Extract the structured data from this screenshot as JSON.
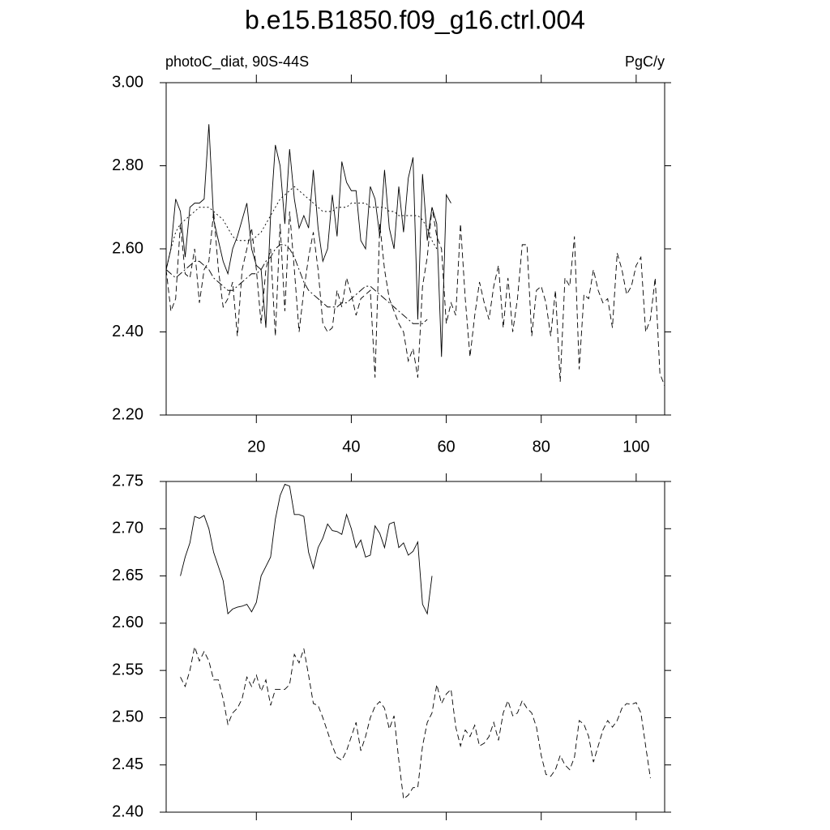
{
  "chart_data": [
    {
      "type": "line",
      "title": "b.e15.B1850.f09_g16.ctrl.004",
      "left_string": "photoC_diat, 90S-44S",
      "right_string": "PgC/y",
      "x": [
        1,
        2,
        3,
        4,
        5,
        6,
        7,
        8,
        9,
        10,
        11,
        12,
        13,
        14,
        15,
        16,
        17,
        18,
        19,
        20,
        21,
        22,
        23,
        24,
        25,
        26,
        27,
        28,
        29,
        30,
        31,
        32,
        33,
        34,
        35,
        36,
        37,
        38,
        39,
        40,
        41,
        42,
        43,
        44,
        45,
        46,
        47,
        48,
        49,
        50,
        51,
        52,
        53,
        54,
        55,
        56,
        57,
        58,
        59,
        60,
        61,
        62,
        63,
        64,
        65,
        66,
        67,
        68,
        69,
        70,
        71,
        72,
        73,
        74,
        75,
        76,
        77,
        78,
        79,
        80,
        81,
        82,
        83,
        84,
        85,
        86,
        87,
        88,
        89,
        90,
        91,
        92,
        93,
        94,
        95,
        96,
        97,
        98,
        99,
        100,
        101,
        102,
        103,
        104,
        105,
        106
      ],
      "xlim": [
        1,
        106
      ],
      "xticks": [
        20,
        40,
        60,
        80,
        100
      ],
      "ylim": [
        2.2,
        3.0
      ],
      "yticks": [
        {
          "value": 2.2,
          "label": "2.20"
        },
        {
          "value": 2.4,
          "label": "2.40"
        },
        {
          "value": 2.6,
          "label": "2.60"
        },
        {
          "value": 2.8,
          "label": "2.80"
        },
        {
          "value": 3.0,
          "label": "3.00"
        }
      ],
      "series": [
        {
          "color": "#000000",
          "dash": "solid",
          "values": [
            2.55,
            2.6,
            2.72,
            2.69,
            2.58,
            2.7,
            2.71,
            2.71,
            2.72,
            2.9,
            2.67,
            2.62,
            2.57,
            2.54,
            2.6,
            2.63,
            2.67,
            2.71,
            2.6,
            2.56,
            2.55,
            2.41,
            2.68,
            2.85,
            2.8,
            2.66,
            2.84,
            2.72,
            2.65,
            2.68,
            2.65,
            2.79,
            2.65,
            2.57,
            2.6,
            2.73,
            2.63,
            2.81,
            2.76,
            2.74,
            2.74,
            2.62,
            2.6,
            2.75,
            2.72,
            2.63,
            2.79,
            2.65,
            2.6,
            2.75,
            2.64,
            2.77,
            2.82,
            2.43,
            2.78,
            2.62,
            2.7,
            2.66,
            2.34,
            2.73,
            2.71,
            null,
            null,
            null,
            null,
            null,
            null,
            null,
            null,
            null,
            null,
            null,
            null,
            null,
            null,
            null,
            null,
            null,
            null,
            null,
            null,
            null,
            null,
            null,
            null,
            null,
            null,
            null,
            null,
            null,
            null,
            null,
            null,
            null,
            null,
            null,
            null,
            null,
            null,
            null,
            null,
            null,
            null,
            null,
            null,
            null
          ]
        },
        {
          "color": "#000000",
          "dash": "dashed",
          "values": [
            2.55,
            2.45,
            2.48,
            2.66,
            2.54,
            2.53,
            2.6,
            2.47,
            2.55,
            2.57,
            2.69,
            2.55,
            2.46,
            2.48,
            2.52,
            2.39,
            2.55,
            2.6,
            2.65,
            2.55,
            2.42,
            2.55,
            2.6,
            2.39,
            2.66,
            2.45,
            2.69,
            2.55,
            2.4,
            2.5,
            2.58,
            2.64,
            2.55,
            2.42,
            2.4,
            2.41,
            2.5,
            2.46,
            2.53,
            2.49,
            2.44,
            2.48,
            2.49,
            2.5,
            2.29,
            2.66,
            2.55,
            2.48,
            2.45,
            2.42,
            2.4,
            2.33,
            2.36,
            2.29,
            2.51,
            2.58,
            2.7,
            2.63,
            2.6,
            2.42,
            2.47,
            2.44,
            2.66,
            2.48,
            2.34,
            2.44,
            2.52,
            2.47,
            2.43,
            2.51,
            2.56,
            2.41,
            2.53,
            2.4,
            2.48,
            2.61,
            2.61,
            2.39,
            2.5,
            2.51,
            2.47,
            2.39,
            2.5,
            2.28,
            2.53,
            2.51,
            2.63,
            2.31,
            2.49,
            2.48,
            2.55,
            2.5,
            2.47,
            2.48,
            2.41,
            2.59,
            2.55,
            2.49,
            2.51,
            2.56,
            2.58,
            2.4,
            2.43,
            2.53,
            2.3,
            2.27
          ]
        },
        {
          "color": "#000000",
          "dash": "dashdot",
          "values": [
            2.55,
            2.54,
            2.53,
            2.54,
            2.55,
            2.56,
            2.57,
            2.57,
            2.56,
            2.55,
            2.53,
            2.52,
            2.51,
            2.5,
            2.5,
            2.51,
            2.52,
            2.53,
            2.54,
            2.54,
            2.55,
            2.57,
            2.58,
            2.6,
            2.61,
            2.61,
            2.6,
            2.58,
            2.55,
            2.52,
            2.5,
            2.49,
            2.48,
            2.47,
            2.46,
            2.46,
            2.46,
            2.47,
            2.47,
            2.48,
            2.49,
            2.5,
            2.51,
            2.51,
            2.5,
            2.49,
            2.48,
            2.47,
            2.46,
            2.45,
            2.44,
            2.43,
            2.42,
            2.42,
            2.42,
            2.43,
            null,
            null,
            null,
            null,
            null,
            null,
            null,
            null,
            null,
            null,
            null,
            null,
            null,
            null,
            null,
            null,
            null,
            null,
            null,
            null,
            null,
            null,
            null,
            null,
            null,
            null,
            null,
            null,
            null,
            null,
            null,
            null,
            null,
            null,
            null,
            null,
            null,
            null,
            null,
            null,
            null,
            null,
            null,
            null,
            null,
            null,
            null,
            null,
            null,
            null
          ]
        },
        {
          "color": "#000000",
          "dash": "dotted",
          "values": [
            2.55,
            2.6,
            2.64,
            2.66,
            2.67,
            2.68,
            2.69,
            2.7,
            2.7,
            2.7,
            2.69,
            2.68,
            2.67,
            2.65,
            2.63,
            2.62,
            2.62,
            2.62,
            2.62,
            2.63,
            2.64,
            2.66,
            2.68,
            2.7,
            2.72,
            2.73,
            2.74,
            2.75,
            2.74,
            2.73,
            2.72,
            2.71,
            2.7,
            2.69,
            2.69,
            2.69,
            2.7,
            2.7,
            2.7,
            2.71,
            2.71,
            2.71,
            2.71,
            2.7,
            2.7,
            2.7,
            2.7,
            2.69,
            2.69,
            2.68,
            2.68,
            2.68,
            2.68,
            2.68,
            2.67,
            2.65,
            2.62,
            2.6,
            null,
            null,
            null,
            null,
            null,
            null,
            null,
            null,
            null,
            null,
            null,
            null,
            null,
            null,
            null,
            null,
            null,
            null,
            null,
            null,
            null,
            null,
            null,
            null,
            null,
            null,
            null,
            null,
            null,
            null,
            null,
            null,
            null,
            null,
            null,
            null,
            null,
            null,
            null,
            null,
            null,
            null,
            null,
            null,
            null,
            null,
            null,
            null
          ]
        }
      ]
    },
    {
      "type": "line",
      "x": [
        4,
        5,
        6,
        7,
        8,
        9,
        10,
        11,
        12,
        13,
        14,
        15,
        16,
        17,
        18,
        19,
        20,
        21,
        22,
        23,
        24,
        25,
        26,
        27,
        28,
        29,
        30,
        31,
        32,
        33,
        34,
        35,
        36,
        37,
        38,
        39,
        40,
        41,
        42,
        43,
        44,
        45,
        46,
        47,
        48,
        49,
        50,
        51,
        52,
        53,
        54,
        55,
        56,
        57,
        58,
        59,
        60,
        61,
        62,
        63,
        64,
        65,
        66,
        67,
        68,
        69,
        70,
        71,
        72,
        73,
        74,
        75,
        76,
        77,
        78,
        79,
        80,
        81,
        82,
        83,
        84,
        85,
        86,
        87,
        88,
        89,
        90,
        91,
        92,
        93,
        94,
        95,
        96,
        97,
        98,
        99,
        100,
        101,
        102,
        103
      ],
      "xlim": [
        1,
        106
      ],
      "xticks": [
        20,
        40,
        60,
        80,
        100
      ],
      "ylim": [
        2.4,
        2.75
      ],
      "yticks": [
        {
          "value": 2.4,
          "label": "2.40"
        },
        {
          "value": 2.45,
          "label": "2.45"
        },
        {
          "value": 2.5,
          "label": "2.50"
        },
        {
          "value": 2.55,
          "label": "2.55"
        },
        {
          "value": 2.6,
          "label": "2.60"
        },
        {
          "value": 2.65,
          "label": "2.65"
        },
        {
          "value": 2.7,
          "label": "2.70"
        },
        {
          "value": 2.75,
          "label": "2.75"
        }
      ],
      "series": [
        {
          "color": "#000000",
          "dash": "solid",
          "values": [
            2.65,
            2.67,
            2.685,
            2.713,
            2.711,
            2.714,
            2.7,
            2.675,
            2.66,
            2.645,
            2.61,
            2.615,
            2.617,
            2.618,
            2.62,
            2.612,
            2.622,
            2.65,
            2.66,
            2.67,
            2.71,
            2.735,
            2.747,
            2.745,
            2.715,
            2.715,
            2.713,
            2.675,
            2.658,
            2.68,
            2.69,
            2.705,
            2.698,
            2.697,
            2.694,
            2.715,
            2.7,
            2.68,
            2.688,
            2.67,
            2.672,
            2.703,
            2.695,
            2.68,
            2.705,
            2.707,
            2.68,
            2.685,
            2.672,
            2.676,
            2.686,
            2.62,
            2.61,
            2.65,
            null,
            null,
            null,
            null,
            null,
            null,
            null,
            null,
            null,
            null,
            null,
            null,
            null,
            null,
            null,
            null,
            null,
            null,
            null,
            null,
            null,
            null,
            null,
            null,
            null,
            null,
            null,
            null,
            null,
            null,
            null,
            null,
            null,
            null,
            null,
            null,
            null,
            null,
            null,
            null,
            null,
            null,
            null,
            null,
            null,
            null
          ]
        },
        {
          "color": "#000000",
          "dash": "dashed",
          "values": [
            2.543,
            2.533,
            2.55,
            2.575,
            2.56,
            2.57,
            2.56,
            2.54,
            2.54,
            2.52,
            2.493,
            2.505,
            2.51,
            2.52,
            2.543,
            2.533,
            2.545,
            2.528,
            2.54,
            2.513,
            2.53,
            2.53,
            2.53,
            2.535,
            2.567,
            2.558,
            2.573,
            2.545,
            2.515,
            2.513,
            2.5,
            2.485,
            2.47,
            2.458,
            2.455,
            2.465,
            2.48,
            2.495,
            2.465,
            2.48,
            2.5,
            2.512,
            2.517,
            2.51,
            2.488,
            2.502,
            2.455,
            2.414,
            2.418,
            2.426,
            2.426,
            2.47,
            2.495,
            2.505,
            2.535,
            2.515,
            2.525,
            2.53,
            2.49,
            2.47,
            2.487,
            2.48,
            2.492,
            2.47,
            2.473,
            2.48,
            2.495,
            2.476,
            2.505,
            2.518,
            2.502,
            2.505,
            2.518,
            2.51,
            2.505,
            2.49,
            2.46,
            2.44,
            2.438,
            2.445,
            2.46,
            2.45,
            2.445,
            2.458,
            2.497,
            2.493,
            2.48,
            2.453,
            2.47,
            2.487,
            2.497,
            2.49,
            2.497,
            2.51,
            2.515,
            2.514,
            2.516,
            2.505,
            2.47,
            2.436
          ]
        }
      ]
    }
  ]
}
